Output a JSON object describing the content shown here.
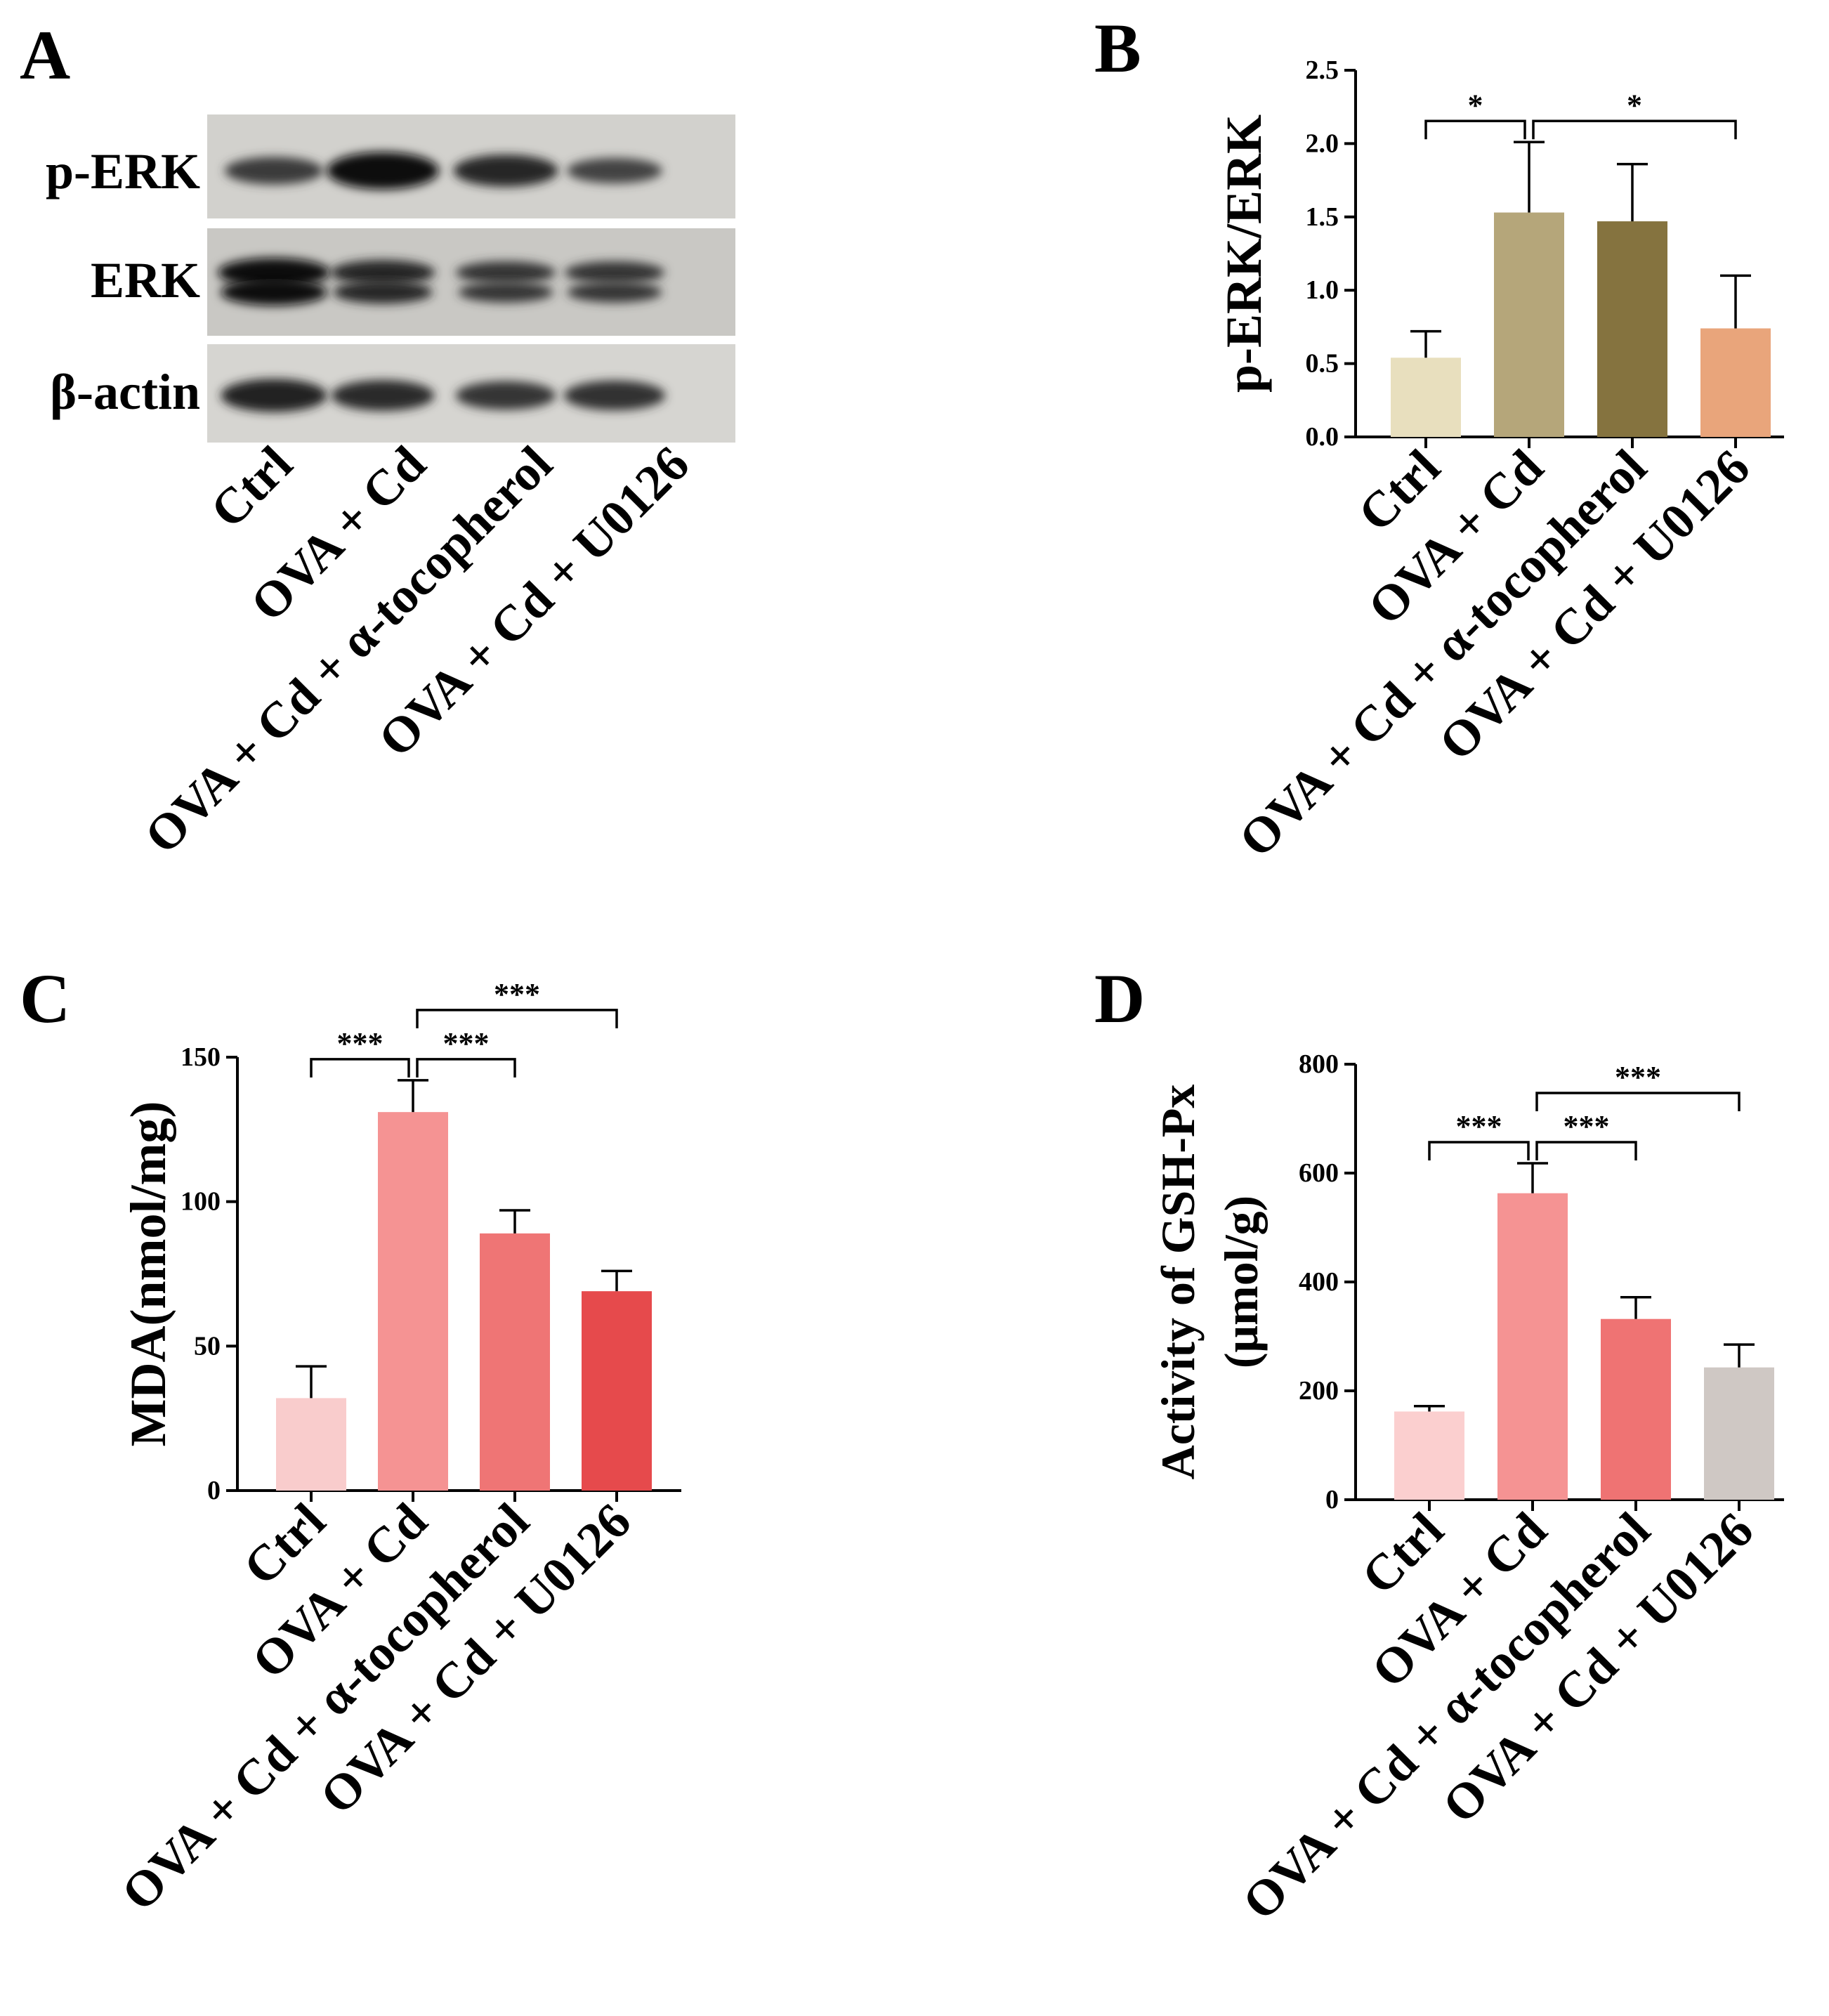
{
  "groups": [
    "Ctrl",
    "OVA + Cd",
    "OVA + Cd + α-tocopherol",
    "OVA + Cd + U0126"
  ],
  "panelA": {
    "letter": "A",
    "blot_labels": [
      "p-ERK",
      "ERK",
      "β-actin"
    ],
    "bands": {
      "p-ERK": [
        0.55,
        1.0,
        0.75,
        0.45
      ],
      "ERK": [
        1.0,
        0.75,
        0.6,
        0.6
      ],
      "β-actin": [
        0.8,
        0.7,
        0.6,
        0.65
      ]
    }
  },
  "chart_data": [
    {
      "panel": "B",
      "type": "bar",
      "categories": [
        "Ctrl",
        "OVA + Cd",
        "OVA + Cd + α-tocopherol",
        "OVA + Cd + U0126"
      ],
      "values": [
        0.54,
        1.53,
        1.47,
        0.74
      ],
      "errors": [
        0.18,
        0.48,
        0.39,
        0.36
      ],
      "colors": [
        "#e8dfbe",
        "#b5a67a",
        "#85733f",
        "#e9a57b"
      ],
      "ylabel": "p-ERK/ERK",
      "ylim": [
        0,
        2.5
      ],
      "yticks": [
        "0.0",
        "0.5",
        "1.0",
        "1.5",
        "2.0",
        "2.5"
      ],
      "significance": [
        {
          "from": 0,
          "to": 1,
          "label": "*",
          "level": 0
        },
        {
          "from": 1,
          "to": 3,
          "label": "*",
          "level": 0
        }
      ]
    },
    {
      "panel": "C",
      "type": "bar",
      "categories": [
        "Ctrl",
        "OVA + Cd",
        "OVA + Cd + α-tocopherol",
        "OVA + Cd + U0126"
      ],
      "values": [
        32,
        131,
        89,
        69
      ],
      "errors": [
        11,
        11,
        8,
        7
      ],
      "colors": [
        "#f9cccc",
        "#f59393",
        "#ef7575",
        "#e64a4c"
      ],
      "ylabel": "MDA(nmol/mg)",
      "ylim": [
        0,
        150
      ],
      "yticks": [
        "0",
        "50",
        "100",
        "150"
      ],
      "significance": [
        {
          "from": 0,
          "to": 1,
          "label": "***",
          "level": 0
        },
        {
          "from": 1,
          "to": 2,
          "label": "***",
          "level": 0
        },
        {
          "from": 1,
          "to": 3,
          "label": "***",
          "level": 1
        }
      ]
    },
    {
      "panel": "D",
      "type": "bar",
      "categories": [
        "Ctrl",
        "OVA + Cd",
        "OVA + Cd + α-tocopherol",
        "OVA + Cd + U0126"
      ],
      "values": [
        162,
        563,
        332,
        243
      ],
      "errors": [
        10,
        55,
        40,
        42
      ],
      "colors": [
        "#fbcfcf",
        "#f59393",
        "#ef7373",
        "#cfc8c4"
      ],
      "ylabel": [
        "Activity of GSH-Px",
        "(μmol/g)"
      ],
      "ylim": [
        0,
        800
      ],
      "yticks": [
        "0",
        "200",
        "400",
        "600",
        "800"
      ],
      "significance": [
        {
          "from": 0,
          "to": 1,
          "label": "***",
          "level": 0
        },
        {
          "from": 1,
          "to": 2,
          "label": "***",
          "level": 0
        },
        {
          "from": 1,
          "to": 3,
          "label": "***",
          "level": 1
        }
      ]
    }
  ]
}
